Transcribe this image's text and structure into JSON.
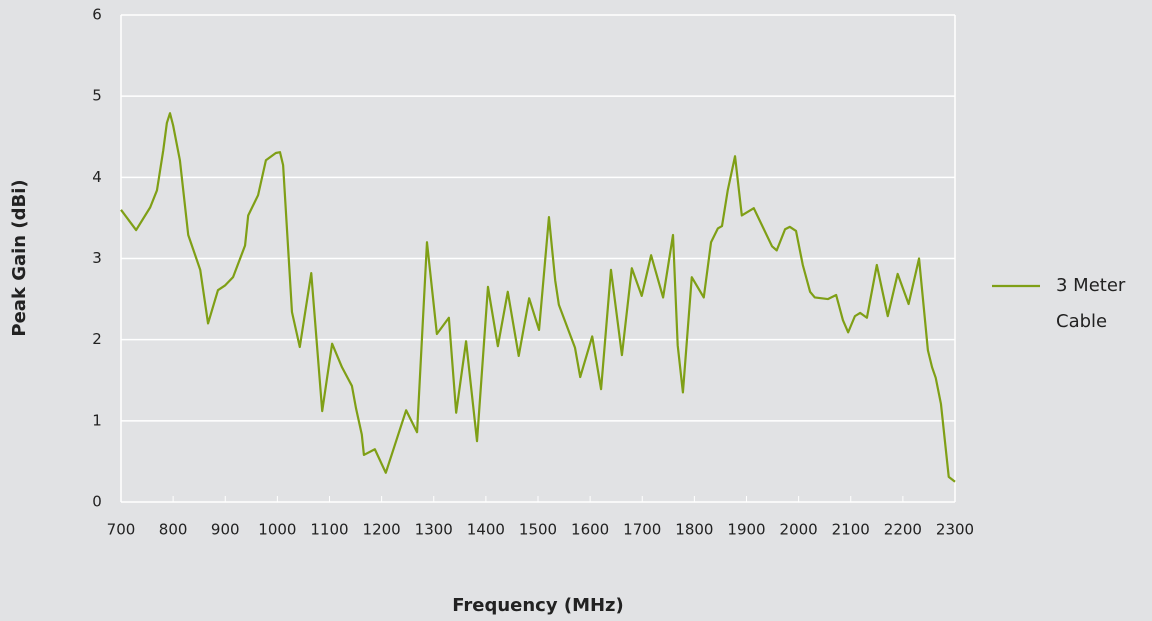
{
  "chart_data": {
    "type": "line",
    "x_label": "Frequency (MHz)",
    "y_label": "Peak Gain (dBi)",
    "x": [
      700,
      729,
      756,
      769,
      781,
      788,
      794,
      800,
      813,
      829,
      852,
      867,
      886,
      900,
      915,
      938,
      944,
      963,
      978,
      997,
      1005,
      1011,
      1028,
      1043,
      1065,
      1086,
      1105,
      1124,
      1143,
      1151,
      1162,
      1166,
      1187,
      1208,
      1247,
      1268,
      1287,
      1306,
      1329,
      1343,
      1362,
      1383,
      1404,
      1423,
      1442,
      1463,
      1483,
      1502,
      1521,
      1533,
      1540,
      1571,
      1581,
      1604,
      1621,
      1640,
      1661,
      1680,
      1699,
      1717,
      1740,
      1759,
      1768,
      1778,
      1795,
      1818,
      1832,
      1845,
      1853,
      1864,
      1878,
      1891,
      1914,
      1949,
      1958,
      1974,
      1983,
      1995,
      2008,
      2022,
      2031,
      2056,
      2072,
      2085,
      2095,
      2108,
      2118,
      2131,
      2150,
      2171,
      2190,
      2211,
      2231,
      2242,
      2248,
      2256,
      2263,
      2273,
      2288,
      2300
    ],
    "series": [
      {
        "name": "3 Meter Cable",
        "color": "#7f9f16",
        "values": [
          3.6,
          3.35,
          3.63,
          3.84,
          4.33,
          4.67,
          4.79,
          4.64,
          4.21,
          3.29,
          2.86,
          2.2,
          2.61,
          2.67,
          2.77,
          3.16,
          3.53,
          3.78,
          4.21,
          4.3,
          4.31,
          4.15,
          2.34,
          1.91,
          2.82,
          1.12,
          1.95,
          1.66,
          1.43,
          1.15,
          0.83,
          0.58,
          0.65,
          0.36,
          1.13,
          0.86,
          3.2,
          2.07,
          2.27,
          1.1,
          1.98,
          0.75,
          2.65,
          1.92,
          2.59,
          1.8,
          2.51,
          2.12,
          3.51,
          2.73,
          2.43,
          1.9,
          1.54,
          2.04,
          1.39,
          2.86,
          1.81,
          2.88,
          2.54,
          3.04,
          2.52,
          3.29,
          1.93,
          1.35,
          2.77,
          2.52,
          3.2,
          3.37,
          3.4,
          3.84,
          4.26,
          3.53,
          3.62,
          3.15,
          3.1,
          3.36,
          3.39,
          3.34,
          2.92,
          2.59,
          2.52,
          2.5,
          2.55,
          2.24,
          2.09,
          2.29,
          2.33,
          2.27,
          2.92,
          2.29,
          2.81,
          2.44,
          3.0,
          2.27,
          1.87,
          1.66,
          1.53,
          1.21,
          0.31,
          0.25
        ]
      }
    ],
    "xlim": [
      700,
      2300
    ],
    "xticks": [
      700,
      800,
      900,
      1000,
      1100,
      1200,
      1300,
      1400,
      1500,
      1600,
      1700,
      1800,
      1900,
      2000,
      2100,
      2200,
      2300
    ],
    "ylim": [
      0,
      6
    ],
    "yticks": [
      0,
      1,
      2,
      3,
      4,
      5,
      6
    ],
    "grid": true,
    "legend": "right"
  }
}
